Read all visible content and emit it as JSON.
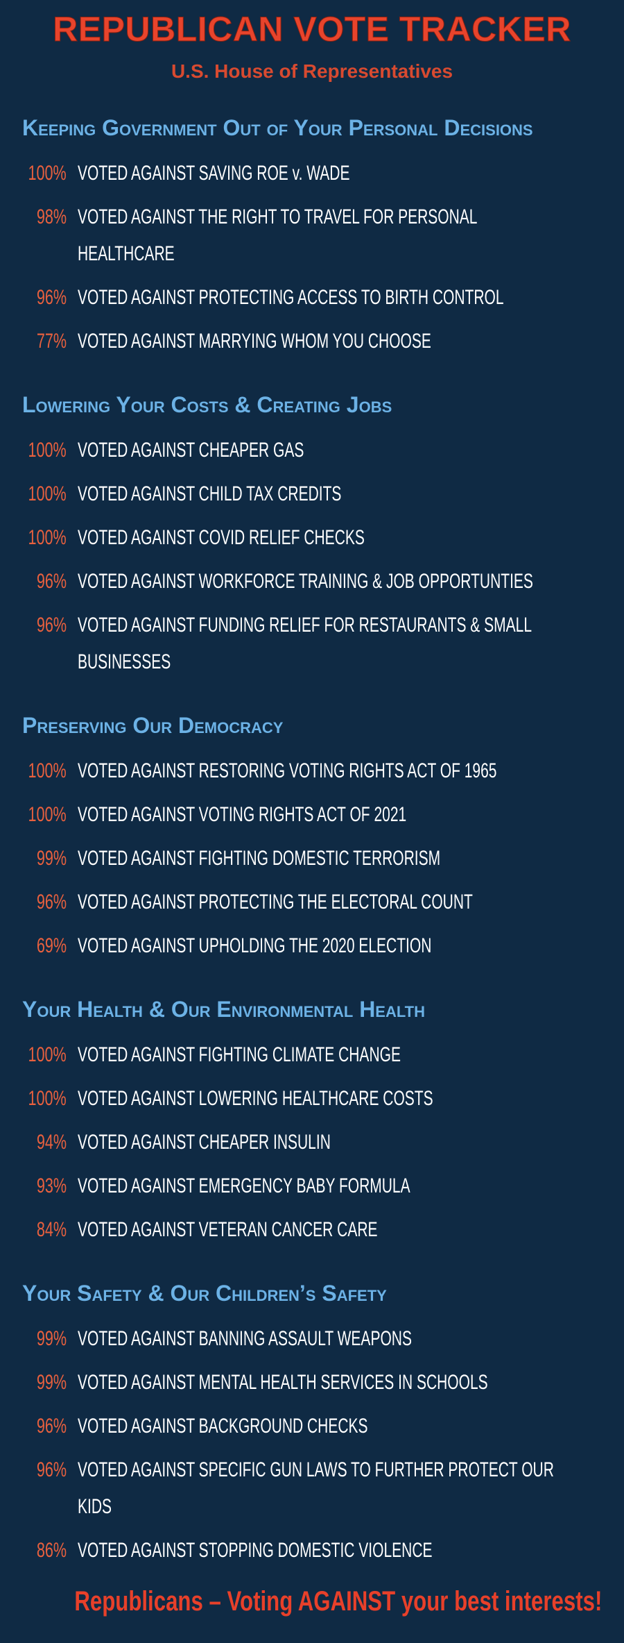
{
  "header": {
    "title": "REPUBLICAN VOTE TRACKER",
    "subtitle": "U.S. House of Representatives"
  },
  "sections": [
    {
      "heading": "Keeping Government Out of Your Personal Decisions",
      "items": [
        {
          "percent": "100%",
          "text": "VOTED AGAINST SAVING ROE v. WADE"
        },
        {
          "percent": "98%",
          "text": "VOTED AGAINST THE RIGHT TO TRAVEL FOR PERSONAL HEALTHCARE"
        },
        {
          "percent": "96%",
          "text": "VOTED AGAINST PROTECTING ACCESS TO BIRTH CONTROL"
        },
        {
          "percent": "77%",
          "text": "VOTED AGAINST MARRYING WHOM YOU CHOOSE"
        }
      ]
    },
    {
      "heading": "Lowering Your Costs & Creating Jobs",
      "items": [
        {
          "percent": "100%",
          "text": "VOTED AGAINST CHEAPER GAS"
        },
        {
          "percent": "100%",
          "text": "VOTED AGAINST CHILD TAX CREDITS"
        },
        {
          "percent": "100%",
          "text": "VOTED AGAINST COVID RELIEF CHECKS"
        },
        {
          "percent": "96%",
          "text": "VOTED AGAINST WORKFORCE TRAINING & JOB OPPORTUNTIES"
        },
        {
          "percent": "96%",
          "text": "VOTED AGAINST FUNDING RELIEF FOR RESTAURANTS & SMALL BUSINESSES"
        }
      ]
    },
    {
      "heading": "Preserving Our Democracy",
      "items": [
        {
          "percent": "100%",
          "text": "VOTED AGAINST RESTORING VOTING RIGHTS ACT OF 1965"
        },
        {
          "percent": "100%",
          "text": "VOTED AGAINST VOTING RIGHTS ACT OF 2021"
        },
        {
          "percent": "99%",
          "text": "VOTED AGAINST FIGHTING DOMESTIC TERRORISM"
        },
        {
          "percent": "96%",
          "text": "VOTED AGAINST PROTECTING THE ELECTORAL COUNT"
        },
        {
          "percent": "69%",
          "text": "VOTED AGAINST UPHOLDING THE 2020 ELECTION"
        }
      ]
    },
    {
      "heading": "Your Health & Our Environmental Health",
      "items": [
        {
          "percent": "100%",
          "text": "VOTED AGAINST FIGHTING CLIMATE CHANGE"
        },
        {
          "percent": "100%",
          "text": "VOTED AGAINST LOWERING HEALTHCARE COSTS"
        },
        {
          "percent": "94%",
          "text": "VOTED AGAINST CHEAPER INSULIN"
        },
        {
          "percent": "93%",
          "text": "VOTED AGAINST EMERGENCY BABY FORMULA"
        },
        {
          "percent": "84%",
          "text": "VOTED AGAINST VETERAN CANCER CARE"
        }
      ]
    },
    {
      "heading": "Your Safety & Our Children’s Safety",
      "items": [
        {
          "percent": "99%",
          "text": "VOTED AGAINST BANNING ASSAULT WEAPONS"
        },
        {
          "percent": "99%",
          "text": "VOTED AGAINST MENTAL HEALTH SERVICES IN SCHOOLS"
        },
        {
          "percent": "96%",
          "text": "VOTED AGAINST BACKGROUND CHECKS"
        },
        {
          "percent": "96%",
          "text": "VOTED AGAINST SPECIFIC GUN LAWS TO FURTHER PROTECT OUR KIDS"
        },
        {
          "percent": "86%",
          "text": "VOTED AGAINST STOPPING DOMESTIC VIOLENCE"
        }
      ]
    }
  ],
  "footer": "Republicans – Voting AGAINST your best interests!"
}
